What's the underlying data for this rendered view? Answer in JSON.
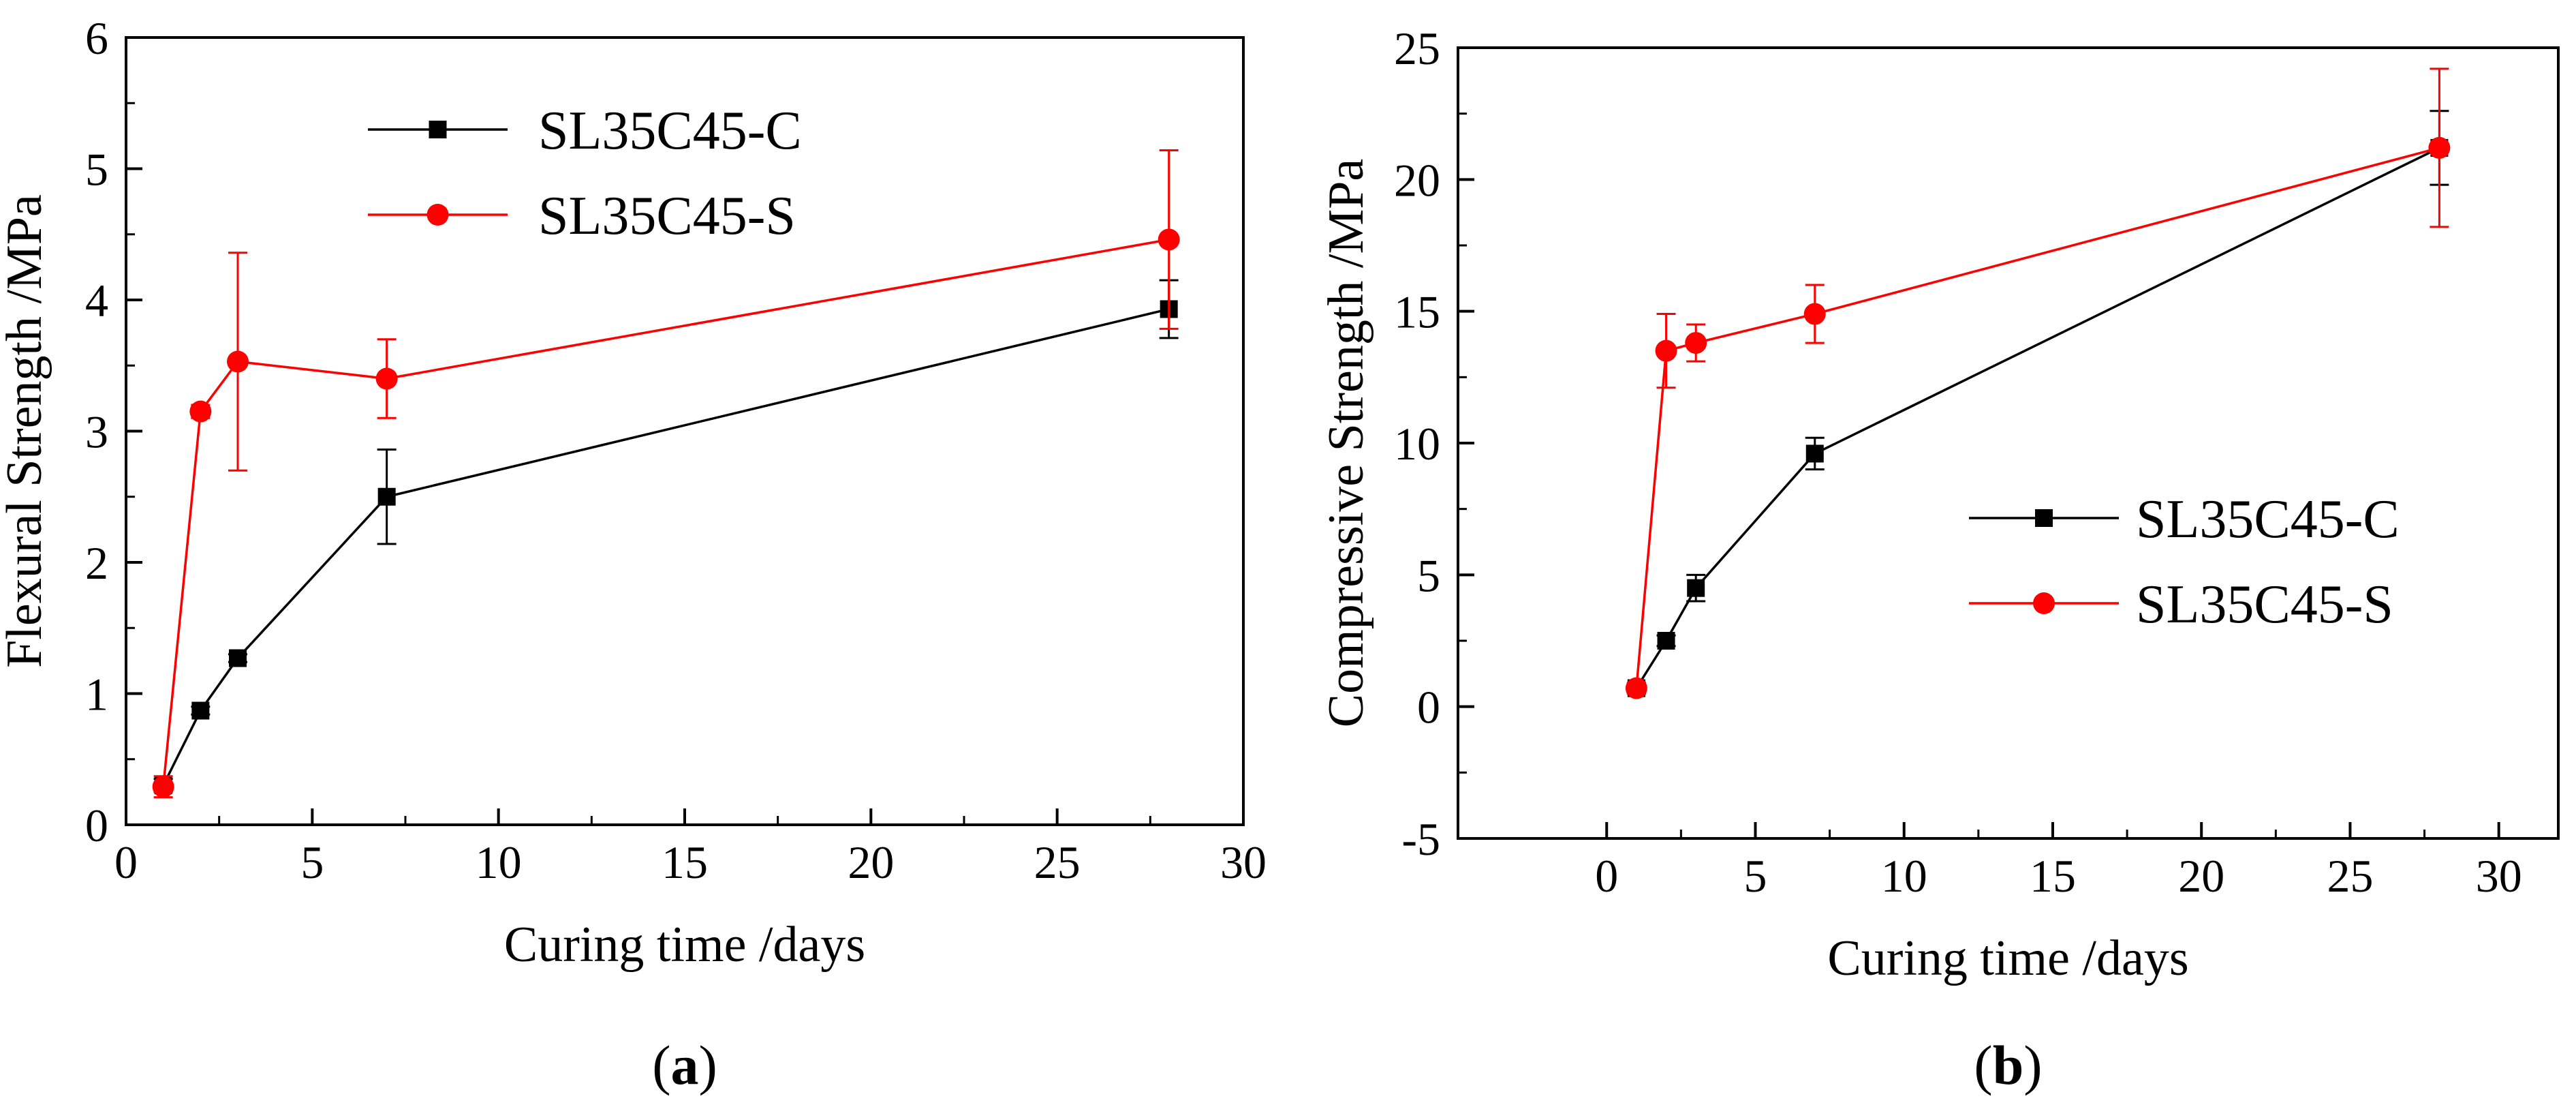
{
  "chart_data": [
    {
      "id": "a",
      "type": "line",
      "panel_label": "a",
      "title": "",
      "xlabel": "Curing time /days",
      "ylabel": "Flexural Strength /MPa",
      "xlim": [
        0,
        30
      ],
      "ylim": [
        0,
        6
      ],
      "xticks": [
        0,
        5,
        10,
        15,
        20,
        25,
        30
      ],
      "yticks": [
        0,
        1,
        2,
        3,
        4,
        5,
        6
      ],
      "legend_position": "top-left",
      "series": [
        {
          "name": "SL35C45-C",
          "color": "#000000",
          "marker": "square",
          "x": [
            1,
            2,
            3,
            7,
            28
          ],
          "y": [
            0.3,
            0.87,
            1.27,
            2.5,
            3.93
          ],
          "err": [
            0.05,
            0.03,
            0.03,
            0.36,
            0.22
          ]
        },
        {
          "name": "SL35C45-S",
          "color": "#ff0000",
          "marker": "circle",
          "x": [
            1,
            2,
            3,
            7,
            28
          ],
          "y": [
            0.29,
            3.15,
            3.53,
            3.4,
            4.46
          ],
          "err": [
            0.08,
            0.05,
            0.83,
            0.3,
            0.68
          ]
        }
      ]
    },
    {
      "id": "b",
      "type": "line",
      "panel_label": "b",
      "title": "",
      "xlabel": "Curing time /days",
      "ylabel": "Compressive Strength /MPa",
      "xlim": [
        -5,
        32
      ],
      "ylim": [
        -5,
        25
      ],
      "xticks": [
        0,
        5,
        10,
        15,
        20,
        25,
        30
      ],
      "yticks": [
        -5,
        0,
        5,
        10,
        15,
        20,
        25
      ],
      "legend_position": "center-right",
      "series": [
        {
          "name": "SL35C45-C",
          "color": "#000000",
          "marker": "square",
          "x": [
            1,
            2,
            3,
            7,
            28
          ],
          "y": [
            0.7,
            2.5,
            4.5,
            9.6,
            21.2
          ],
          "err": [
            0.2,
            0.2,
            0.5,
            0.6,
            1.4
          ]
        },
        {
          "name": "SL35C45-S",
          "color": "#ff0000",
          "marker": "circle",
          "x": [
            1,
            2,
            3,
            7,
            28
          ],
          "y": [
            0.7,
            13.5,
            13.8,
            14.9,
            21.2
          ],
          "err": [
            0.2,
            1.4,
            0.7,
            1.1,
            3.0
          ]
        }
      ]
    }
  ]
}
